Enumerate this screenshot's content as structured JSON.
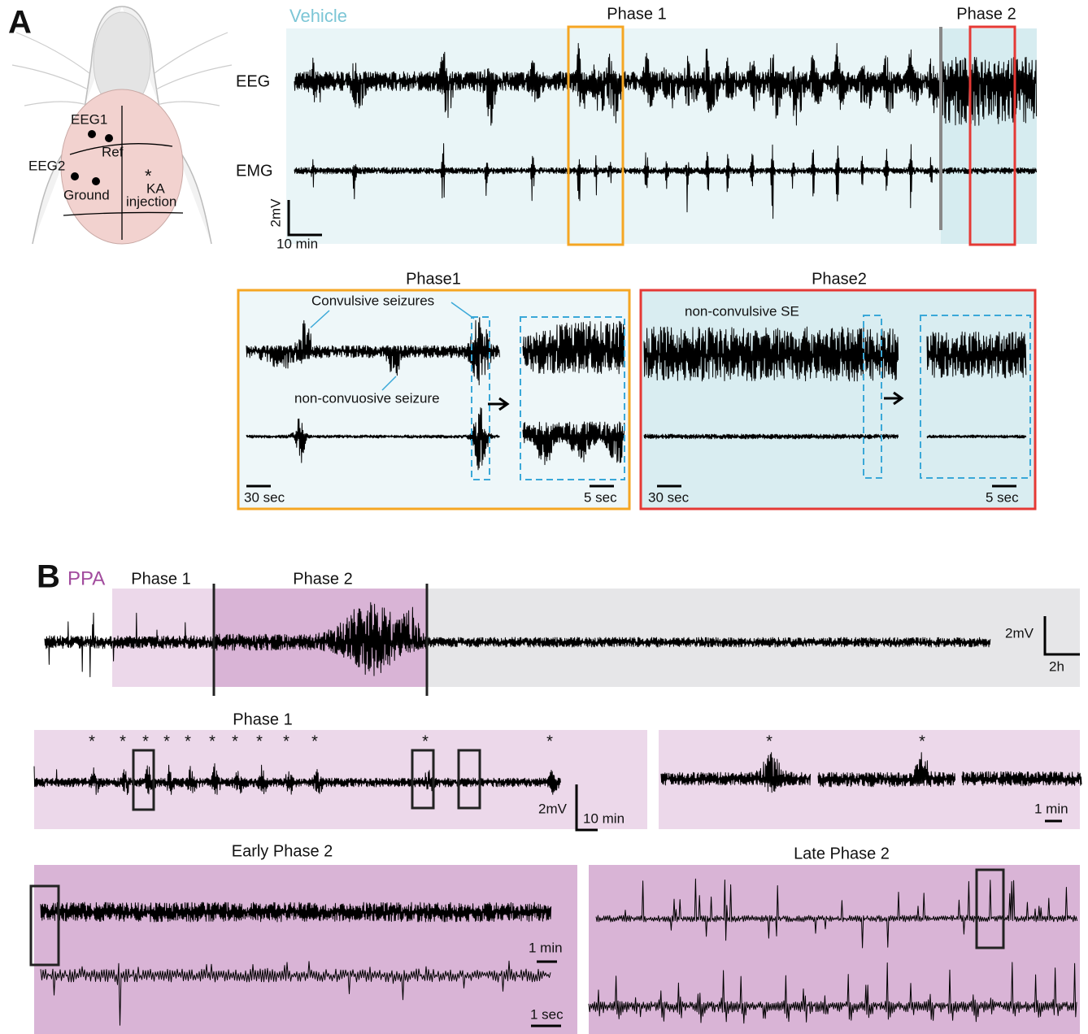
{
  "panel_a": {
    "label": "A",
    "mouse": {
      "electrodes": [
        "EEG1",
        "Ref",
        "EEG2",
        "Ground"
      ],
      "injection_mark": "*",
      "injection": [
        "KA",
        "injection"
      ]
    },
    "overview": {
      "condition": "Vehicle",
      "phase1": "Phase 1",
      "phase2": "Phase 2",
      "channels": [
        "EEG",
        "EMG"
      ],
      "scale_v": "2mV",
      "scale_t": "10 min"
    },
    "phase1_inset": {
      "title": "Phase1",
      "annotations": [
        "Convulsive seizures",
        "non-convuosive seizure"
      ],
      "scale_main": "30 sec",
      "scale_zoom": "5 sec"
    },
    "phase2_inset": {
      "title": "Phase2",
      "annotations": [
        "non-convulsive SE"
      ],
      "scale_main": "30 sec",
      "scale_zoom": "5 sec"
    }
  },
  "panel_b": {
    "label": "B",
    "condition": "PPA",
    "phase1": "Phase 1",
    "phase2": "Phase 2",
    "scale_v": "2mV",
    "scale_t": "2h",
    "phase1_detail": {
      "title": "Phase 1",
      "seizure_mark": "*",
      "scale_v": "2mV",
      "scale_t": "10 min",
      "zoom_scale_t": "1 min"
    },
    "early_phase2": {
      "title": "Early Phase 2",
      "scale_t": "1 min",
      "zoom_scale_t": "1 sec"
    },
    "late_phase2": {
      "title": "Late Phase 2"
    }
  }
}
